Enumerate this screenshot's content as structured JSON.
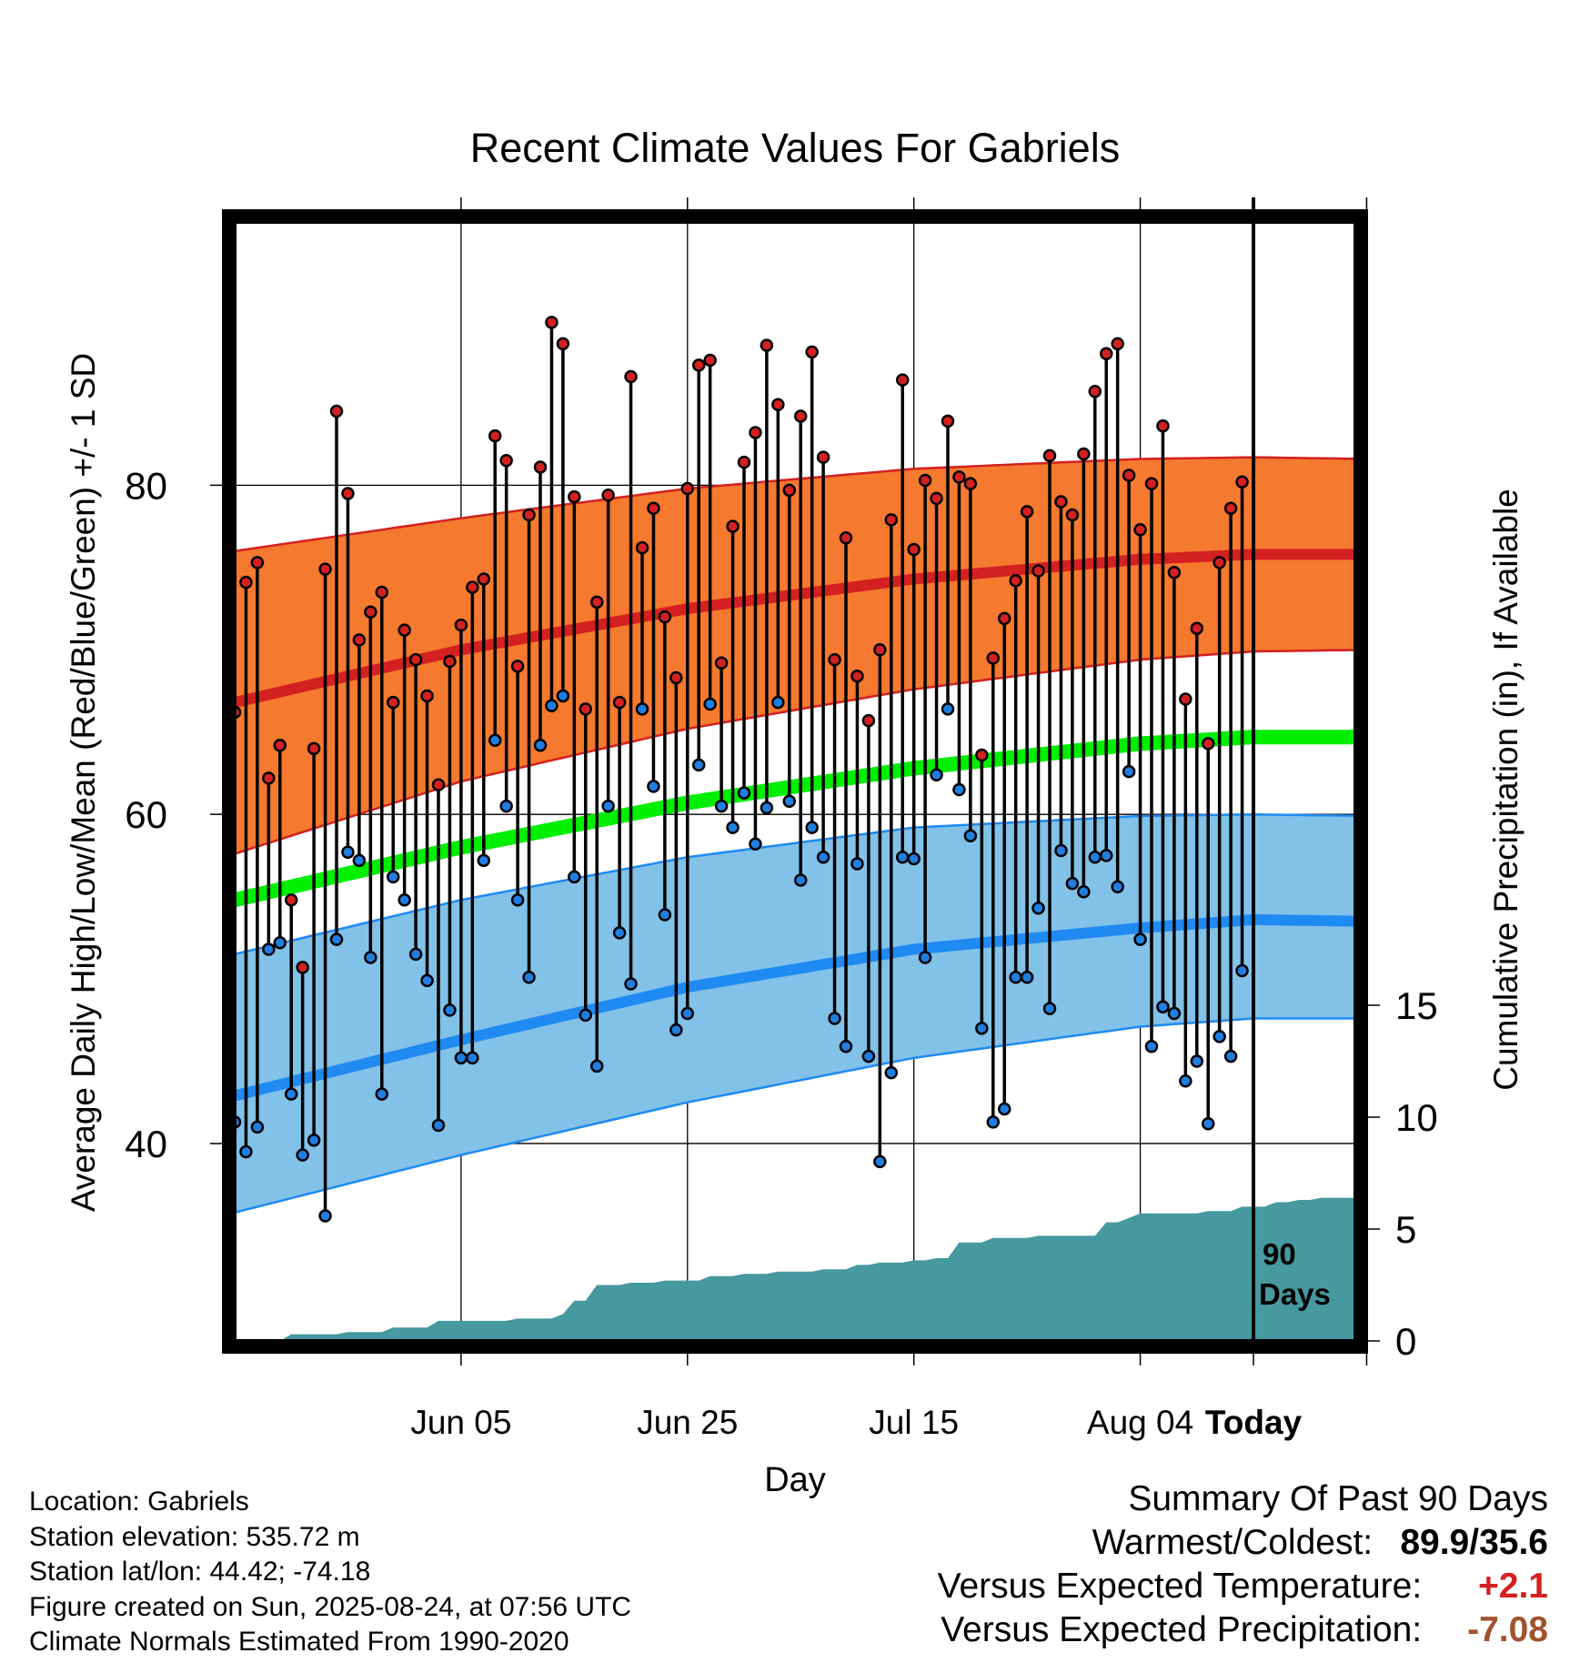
{
  "chart_data": {
    "type": "line",
    "title": "Recent Climate Values For Gabriels",
    "xlabel": "Day",
    "ylabel": "Average Daily High/Low/Mean (Red/Blue/Green) +/- 1 SD",
    "y2label": "Cumulative Precipitation (in), If Available",
    "x_tick_labels": [
      "Jun 05",
      "Jun 25",
      "Jul 15",
      "Aug 04",
      "Today"
    ],
    "y_ticks": [
      40,
      60,
      80
    ],
    "y2_ticks": [
      0,
      5,
      10,
      15
    ],
    "today_marker": {
      "label_line1": "90",
      "label_line2": "Days"
    },
    "day_range": [
      -90,
      9
    ],
    "ylim": [
      28,
      96
    ],
    "y2lim": [
      0,
      50
    ],
    "colors": {
      "high_band": "#f5792e",
      "high_mean": "#d42020",
      "low_band": "#82c1e8",
      "low_mean": "#1f8af2",
      "mean": "#00ee00",
      "precip": "#46999f",
      "warm_point": "#d42020",
      "cold_point": "#1f7ee0"
    },
    "normals": {
      "days": [
        -90,
        -70,
        -50,
        -30,
        -10,
        0,
        10,
        30,
        50,
        70,
        90,
        99
      ],
      "high_mean": [
        66.8,
        70.0,
        72.5,
        74.3,
        75.5,
        75.8,
        75.8,
        75.2,
        74.5,
        73.5,
        72.5,
        71.5
      ],
      "high_sd_upper": [
        76.0,
        78.0,
        79.8,
        81.0,
        81.6,
        81.7,
        81.6,
        81.1,
        80.5,
        79.8,
        79.0,
        78.5
      ],
      "high_sd_lower": [
        57.6,
        62.0,
        65.2,
        67.6,
        69.4,
        69.9,
        70.0,
        69.3,
        68.5,
        67.2,
        66.0,
        64.5
      ],
      "mean": [
        54.8,
        58.0,
        60.7,
        62.8,
        64.3,
        64.7,
        64.7,
        64.0,
        63.2,
        62.0,
        60.6,
        59.6
      ],
      "low_mean": [
        42.9,
        46.3,
        49.5,
        51.8,
        53.1,
        53.6,
        53.5,
        52.9,
        51.8,
        50.4,
        48.8,
        47.6
      ],
      "low_sd_upper": [
        51.5,
        54.8,
        57.4,
        59.2,
        59.9,
        60.0,
        59.9,
        59.3,
        58.5,
        57.4,
        56.0,
        55.2
      ],
      "low_sd_lower": [
        35.8,
        39.3,
        42.5,
        45.2,
        47.1,
        47.6,
        47.6,
        47.2,
        46.4,
        45.1,
        42.7,
        41.0
      ]
    },
    "highs": [
      66.2,
      74.1,
      75.3,
      62.2,
      64.2,
      54.8,
      50.7,
      64.0,
      74.9,
      84.5,
      79.5,
      70.6,
      72.3,
      73.5,
      66.8,
      71.2,
      69.4,
      67.2,
      61.8,
      69.3,
      71.5,
      73.8,
      74.3,
      83.0,
      81.5,
      69.0,
      78.2,
      81.1,
      89.9,
      88.6,
      79.3,
      66.4,
      72.9,
      79.4,
      66.8,
      86.6,
      76.2,
      78.6,
      72.0,
      68.3,
      79.8,
      87.3,
      87.6,
      69.2,
      77.5,
      81.4,
      83.2,
      88.5,
      84.9,
      79.7,
      84.2,
      88.1,
      81.7,
      69.4,
      76.8,
      68.4,
      65.7,
      70.0,
      77.9,
      86.4,
      76.1,
      80.3,
      79.2,
      83.9,
      80.5,
      80.1,
      63.6,
      69.5,
      71.9,
      74.2,
      78.4,
      74.8,
      81.8,
      79.0,
      78.2,
      81.9,
      85.7,
      88.0,
      88.6,
      80.6,
      77.3,
      80.1,
      83.6,
      74.7,
      67.0,
      71.3,
      64.3,
      75.3,
      78.6,
      80.2
    ],
    "lows": [
      41.3,
      39.5,
      41.0,
      51.8,
      52.2,
      43.0,
      39.3,
      40.2,
      35.6,
      52.4,
      57.7,
      57.2,
      51.3,
      43.0,
      56.2,
      54.8,
      51.5,
      49.9,
      41.1,
      48.1,
      45.2,
      45.2,
      57.2,
      64.5,
      60.5,
      54.8,
      50.1,
      64.2,
      66.6,
      67.2,
      56.2,
      47.8,
      44.7,
      60.5,
      52.8,
      49.7,
      66.4,
      61.7,
      53.9,
      46.9,
      47.9,
      63.0,
      66.7,
      60.5,
      59.2,
      61.3,
      58.2,
      60.4,
      66.8,
      60.8,
      56.0,
      59.2,
      57.4,
      47.6,
      45.9,
      57.0,
      45.3,
      38.9,
      44.3,
      57.4,
      57.3,
      51.3,
      62.4,
      66.4,
      61.5,
      58.7,
      47.0,
      41.3,
      42.1,
      50.1,
      50.1,
      54.3,
      48.2,
      57.8,
      55.8,
      55.3,
      57.4,
      57.5,
      55.6,
      62.6,
      52.4,
      45.9,
      48.3,
      47.9,
      43.8,
      45.0,
      41.2,
      46.5,
      45.3,
      50.5
    ],
    "precip_steps": [
      [
        -86,
        0.3
      ],
      [
        -81,
        0.4
      ],
      [
        -77,
        0.6
      ],
      [
        -73,
        0.9
      ],
      [
        -66,
        1.0
      ],
      [
        -62,
        1.2
      ],
      [
        -61,
        1.8
      ],
      [
        -59,
        2.5
      ],
      [
        -56,
        2.6
      ],
      [
        -53,
        2.7
      ],
      [
        -49,
        2.9
      ],
      [
        -46,
        3.0
      ],
      [
        -43,
        3.1
      ],
      [
        -39,
        3.2
      ],
      [
        -36,
        3.4
      ],
      [
        -34,
        3.5
      ],
      [
        -31,
        3.6
      ],
      [
        -29,
        3.7
      ],
      [
        -27,
        4.4
      ],
      [
        -24,
        4.6
      ],
      [
        -20,
        4.7
      ],
      [
        -14,
        5.3
      ],
      [
        -12,
        5.5
      ],
      [
        -11,
        5.7
      ],
      [
        -5,
        5.8
      ],
      [
        -2,
        6.0
      ],
      [
        1,
        6.2
      ],
      [
        3,
        6.3
      ],
      [
        5,
        6.4
      ],
      [
        9,
        6.5
      ]
    ]
  },
  "footer": {
    "location": "Location: Gabriels",
    "elevation": "Station elevation: 535.72 m",
    "latlon": "Station lat/lon: 44.42; -74.18",
    "created": "Figure created on Sun, 2025-08-24, at 07:56 UTC",
    "normals": "Climate Normals Estimated From 1990-2020"
  },
  "summary": {
    "title": "Summary Of Past 90 Days",
    "warm_cold_label": "Warmest/Coldest:",
    "warm_cold_value": "89.9/35.6",
    "temp_label": "Versus Expected Temperature:",
    "temp_value": "+2.1",
    "temp_color": "#d42020",
    "precip_label": "Versus Expected Precipitation:",
    "precip_value": "-7.08",
    "precip_color": "#a0522d"
  }
}
